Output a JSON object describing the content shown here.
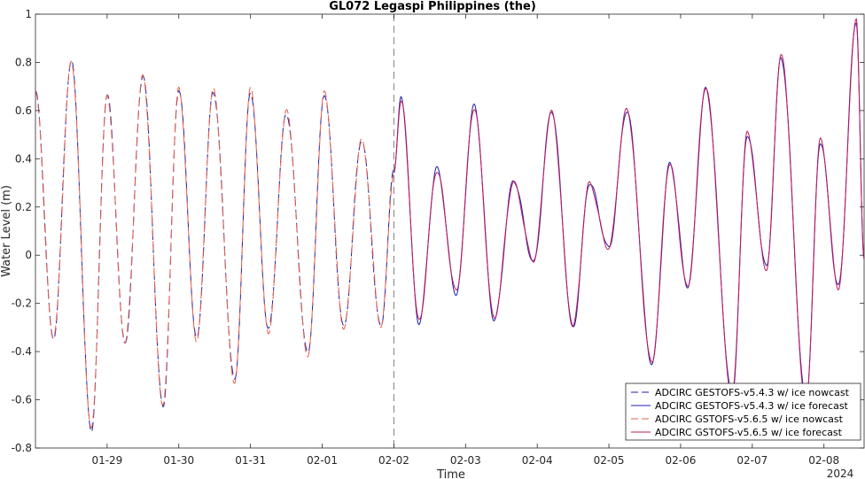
{
  "chart_data": {
    "type": "line",
    "title": "GL072 Legaspi Philippines (the)",
    "xlabel": "Time",
    "ylabel": "Water Level (m)",
    "year_label": "2024",
    "x_unit": "days since 2024-01-28 00:00",
    "xlim": [
      0.0,
      11.56
    ],
    "ylim": [
      -0.8,
      1.0
    ],
    "yticks": [
      -0.8,
      -0.6,
      -0.4,
      -0.2,
      0,
      0.2,
      0.4,
      0.6,
      0.8,
      1
    ],
    "ytick_labels": [
      "-0.8",
      "-0.6",
      "-0.4",
      "-0.2",
      "0",
      "0.2",
      "0.4",
      "0.6",
      "0.8",
      "1"
    ],
    "xticks": [
      1,
      2,
      3,
      4,
      5,
      6,
      7,
      8,
      9,
      10,
      11
    ],
    "xtick_labels": [
      "01-29",
      "01-30",
      "01-31",
      "02-01",
      "02-02",
      "02-03",
      "02-04",
      "02-05",
      "02-06",
      "02-07",
      "02-08"
    ],
    "nowcast_forecast_divider_x": 5.0,
    "extrema_note": "alternating tidal highs/lows (time, level)",
    "nowcast_extrema": [
      [
        0.0,
        0.68
      ],
      [
        0.25,
        -0.35
      ],
      [
        0.5,
        0.81
      ],
      [
        0.78,
        -0.73
      ],
      [
        1.0,
        0.67
      ],
      [
        1.25,
        -0.37
      ],
      [
        1.5,
        0.75
      ],
      [
        1.78,
        -0.63
      ],
      [
        2.0,
        0.69
      ],
      [
        2.25,
        -0.35
      ],
      [
        2.48,
        0.68
      ],
      [
        2.78,
        -0.52
      ],
      [
        3.0,
        0.68
      ],
      [
        3.25,
        -0.31
      ],
      [
        3.5,
        0.59
      ],
      [
        3.8,
        -0.41
      ],
      [
        4.03,
        0.67
      ],
      [
        4.3,
        -0.3
      ],
      [
        4.55,
        0.48
      ],
      [
        4.82,
        -0.3
      ],
      [
        5.0,
        0.35
      ]
    ],
    "forecast_extrema": [
      [
        5.0,
        0.35
      ],
      [
        5.1,
        0.65
      ],
      [
        5.35,
        -0.28
      ],
      [
        5.6,
        0.36
      ],
      [
        5.87,
        -0.16
      ],
      [
        6.12,
        0.62
      ],
      [
        6.4,
        -0.27
      ],
      [
        6.67,
        0.31
      ],
      [
        6.95,
        -0.03
      ],
      [
        7.2,
        0.6
      ],
      [
        7.5,
        -0.3
      ],
      [
        7.73,
        0.3
      ],
      [
        8.0,
        0.03
      ],
      [
        8.25,
        0.6
      ],
      [
        8.6,
        -0.45
      ],
      [
        8.85,
        0.38
      ],
      [
        9.1,
        -0.13
      ],
      [
        9.35,
        0.69
      ],
      [
        9.72,
        -0.58
      ],
      [
        9.93,
        0.5
      ],
      [
        10.2,
        -0.05
      ],
      [
        10.4,
        0.82
      ],
      [
        10.75,
        -0.6
      ],
      [
        10.95,
        0.47
      ],
      [
        11.2,
        -0.13
      ],
      [
        11.45,
        0.97
      ],
      [
        11.56,
        -0.02
      ]
    ],
    "series": [
      {
        "name": "ADCIRC GESTOFS-v5.4.3 w/ ice nowcast",
        "color": "#1f1fa8",
        "dash": "dashed",
        "segment": "nowcast",
        "offset": 0.0
      },
      {
        "name": "ADCIRC GESTOFS-v5.4.3 w/ ice forecast",
        "color": "#1f1fa8",
        "dash": "solid",
        "segment": "forecast",
        "offset": 0.0
      },
      {
        "name": "ADCIRC GSTOFS-v5.6.5 w/ ice nowcast",
        "color": "#e8604c",
        "dash": "dashed",
        "segment": "nowcast",
        "offset": 0.01
      },
      {
        "name": "ADCIRC GSTOFS-v5.6.5 w/ ice forecast",
        "color": "#c2185b",
        "dash": "solid",
        "segment": "forecast",
        "offset": 0.01
      }
    ],
    "legend_position": "bottom-right",
    "grid": false
  }
}
